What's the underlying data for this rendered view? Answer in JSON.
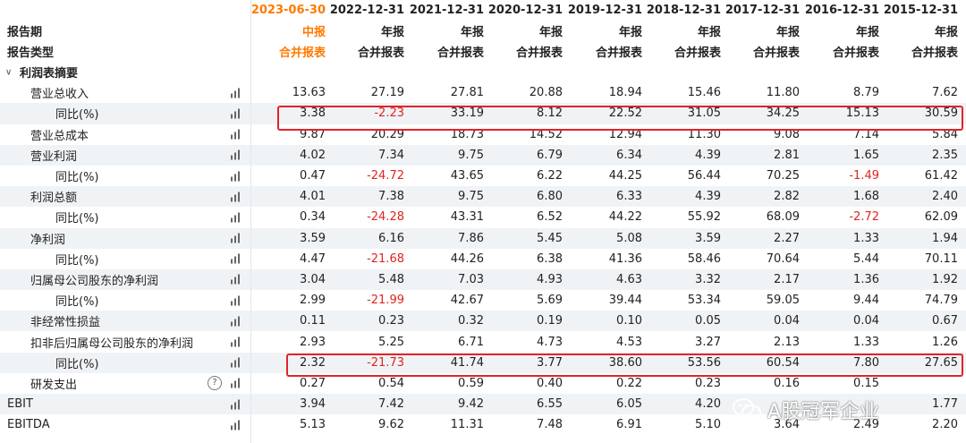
{
  "dates": [
    "2023-06-30",
    "2022-12-31",
    "2021-12-31",
    "2020-12-31",
    "2019-12-31",
    "2018-12-31",
    "2017-12-31",
    "2016-12-31",
    "2015-12-31"
  ],
  "report_period": {
    "label": "报告期",
    "values": [
      "中报",
      "年报",
      "年报",
      "年报",
      "年报",
      "年报",
      "年报",
      "年报",
      "年报"
    ]
  },
  "report_type": {
    "label": "报告类型",
    "values": [
      "合并报表",
      "合并报表",
      "合并报表",
      "合并报表",
      "合并报表",
      "合并报表",
      "合并报表",
      "合并报表",
      "合并报表"
    ]
  },
  "section": {
    "label": "利润表摘要"
  },
  "rows": [
    {
      "label": "营业总收入",
      "level": 1,
      "values": [
        "13.63",
        "27.19",
        "27.81",
        "20.88",
        "18.94",
        "15.46",
        "11.80",
        "8.79",
        "7.62"
      ]
    },
    {
      "label": "同比(%)",
      "level": 2,
      "values": [
        "3.38",
        "-2.23",
        "33.19",
        "8.12",
        "22.52",
        "31.05",
        "34.25",
        "15.13",
        "30.59"
      ]
    },
    {
      "label": "营业总成本",
      "level": 1,
      "values": [
        "9.87",
        "20.29",
        "18.73",
        "14.52",
        "12.94",
        "11.30",
        "9.08",
        "7.14",
        "5.84"
      ]
    },
    {
      "label": "营业利润",
      "level": 1,
      "values": [
        "4.02",
        "7.34",
        "9.75",
        "6.79",
        "6.34",
        "4.39",
        "2.81",
        "1.65",
        "2.35"
      ]
    },
    {
      "label": "同比(%)",
      "level": 2,
      "values": [
        "0.47",
        "-24.72",
        "43.65",
        "6.22",
        "44.25",
        "56.44",
        "70.25",
        "-1.49",
        "61.42"
      ]
    },
    {
      "label": "利润总额",
      "level": 1,
      "values": [
        "4.01",
        "7.38",
        "9.75",
        "6.80",
        "6.33",
        "4.39",
        "2.82",
        "1.68",
        "2.40"
      ]
    },
    {
      "label": "同比(%)",
      "level": 2,
      "values": [
        "0.34",
        "-24.28",
        "43.31",
        "6.52",
        "44.22",
        "55.92",
        "68.09",
        "-2.72",
        "62.09"
      ]
    },
    {
      "label": "净利润",
      "level": 1,
      "values": [
        "3.59",
        "6.16",
        "7.86",
        "5.45",
        "5.08",
        "3.59",
        "2.27",
        "1.33",
        "1.94"
      ]
    },
    {
      "label": "同比(%)",
      "level": 2,
      "values": [
        "4.47",
        "-21.68",
        "44.26",
        "6.38",
        "41.36",
        "58.46",
        "70.64",
        "5.44",
        "70.11"
      ]
    },
    {
      "label": "归属母公司股东的净利润",
      "level": 1,
      "values": [
        "3.04",
        "5.48",
        "7.03",
        "4.93",
        "4.63",
        "3.32",
        "2.17",
        "1.36",
        "1.92"
      ]
    },
    {
      "label": "同比(%)",
      "level": 2,
      "values": [
        "2.99",
        "-21.99",
        "42.67",
        "5.69",
        "39.44",
        "53.34",
        "59.05",
        "9.44",
        "74.79"
      ]
    },
    {
      "label": "非经常性损益",
      "level": 1,
      "values": [
        "0.11",
        "0.23",
        "0.32",
        "0.19",
        "0.10",
        "0.05",
        "0.04",
        "0.04",
        "0.67"
      ]
    },
    {
      "label": "扣非后归属母公司股东的净利润",
      "level": 1,
      "values": [
        "2.93",
        "5.25",
        "6.71",
        "4.73",
        "4.53",
        "3.27",
        "2.13",
        "1.33",
        "1.26"
      ]
    },
    {
      "label": "同比(%)",
      "level": 2,
      "values": [
        "2.32",
        "-21.73",
        "41.74",
        "3.77",
        "38.60",
        "53.56",
        "60.54",
        "7.80",
        "27.65"
      ]
    },
    {
      "label": "研发支出",
      "level": 1,
      "help": true,
      "values": [
        "0.27",
        "0.54",
        "0.59",
        "0.40",
        "0.22",
        "0.23",
        "0.16",
        "0.15",
        ""
      ]
    },
    {
      "label": "EBIT",
      "level": 0,
      "values": [
        "3.94",
        "7.42",
        "9.42",
        "6.55",
        "6.05",
        "4.20",
        "",
        "",
        "1.77"
      ]
    },
    {
      "label": "EBITDA",
      "level": 0,
      "values": [
        "5.13",
        "9.62",
        "11.31",
        "7.48",
        "6.91",
        "5.10",
        "3.64",
        "2.49",
        "2.20"
      ]
    }
  ],
  "watermark": {
    "text": "A股冠军企业"
  },
  "colors": {
    "accent": "#ff7a00",
    "negative": "#e0241f",
    "highlight_box": "#e3222a",
    "row_shade": "#f0f3f6"
  }
}
